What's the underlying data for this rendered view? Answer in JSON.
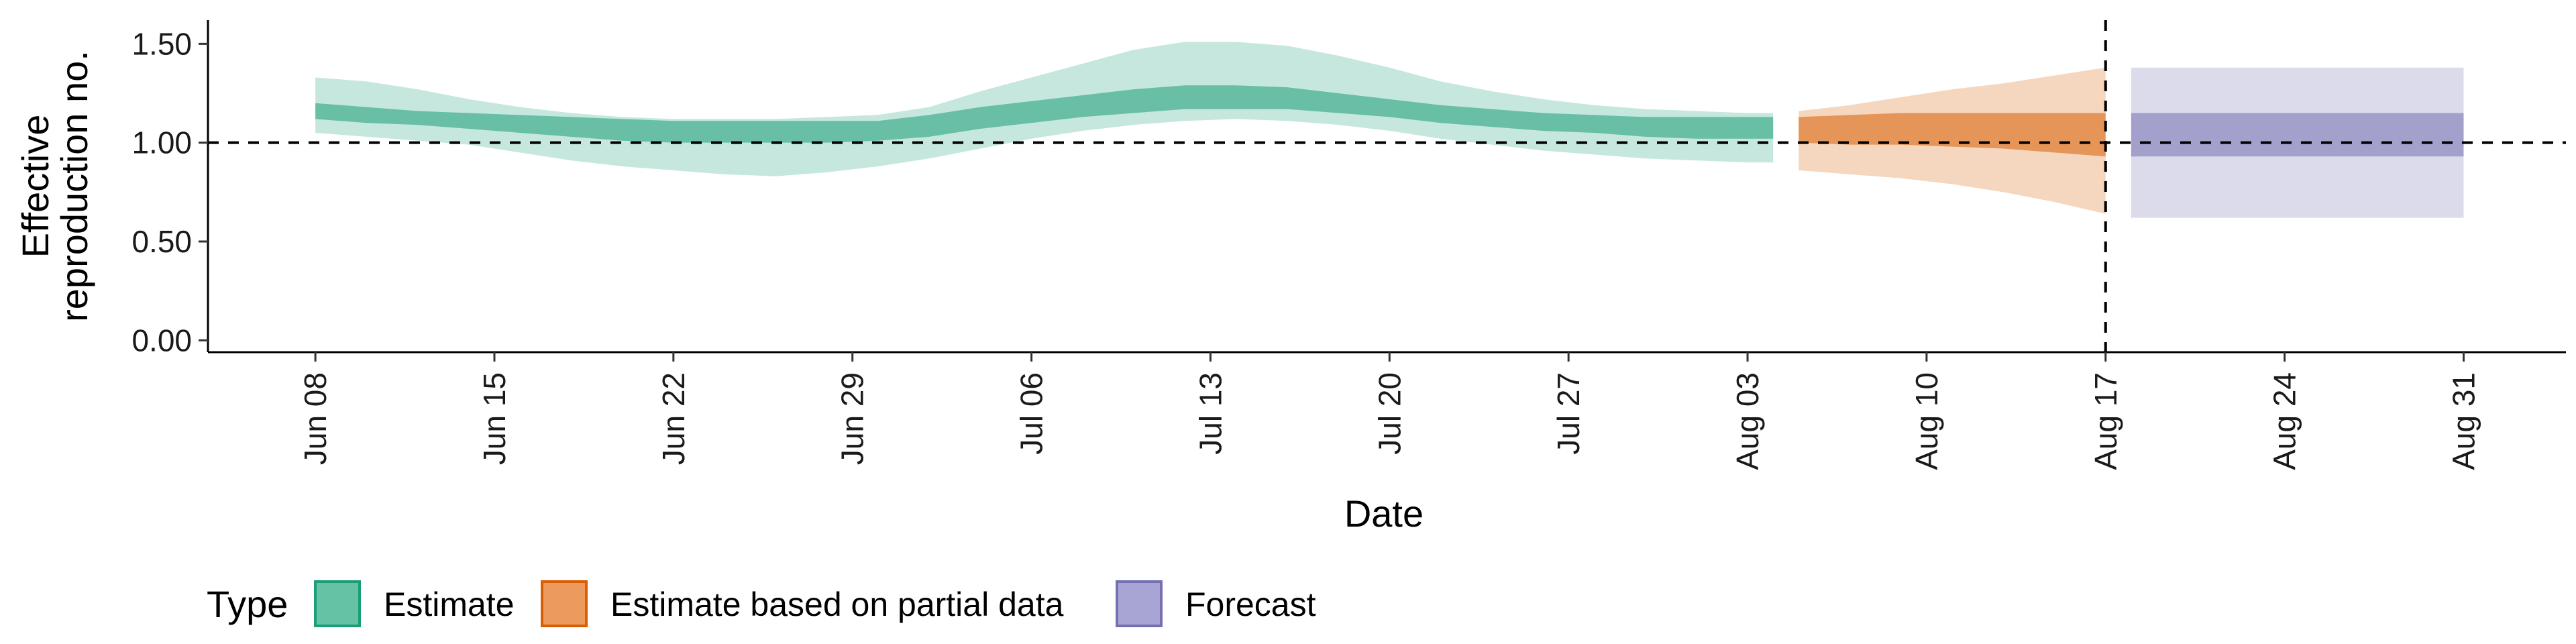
{
  "chart_data": {
    "type": "area",
    "xlabel": "Date",
    "ylabel_lines": [
      "Effective",
      "reproduction no."
    ],
    "x_tick_labels": [
      "Jun 08",
      "Jun 15",
      "Jun 22",
      "Jun 29",
      "Jul 06",
      "Jul 13",
      "Jul 20",
      "Jul 27",
      "Aug 03",
      "Aug 10",
      "Aug 17",
      "Aug 24",
      "Aug 31"
    ],
    "y_ticks": [
      0.0,
      0.5,
      1.0,
      1.5
    ],
    "y_tick_labels": [
      "0.00",
      "0.50",
      "1.00",
      "1.50"
    ],
    "ylim": [
      0,
      1.6
    ],
    "x_range_days": [
      -4.2,
      88
    ],
    "reference_hline": 1.0,
    "reference_vline_date": "Aug 17",
    "legend": {
      "title": "Type",
      "position": "bottom-left",
      "items": [
        {
          "label": "Estimate",
          "fill": "#66c2a5",
          "stroke": "#1b9e77"
        },
        {
          "label": "Estimate based on partial data",
          "fill": "#ec9a5e",
          "stroke": "#d95f02"
        },
        {
          "label": "Forecast",
          "fill": "#a8a5d4",
          "stroke": "#7570b3"
        }
      ]
    },
    "series": [
      {
        "name": "Estimate",
        "color": "#1b9e77",
        "dates": [
          "Jun 08",
          "Jun 10",
          "Jun 12",
          "Jun 14",
          "Jun 16",
          "Jun 18",
          "Jun 20",
          "Jun 22",
          "Jun 24",
          "Jun 26",
          "Jun 28",
          "Jun 30",
          "Jul 02",
          "Jul 04",
          "Jul 06",
          "Jul 08",
          "Jul 10",
          "Jul 12",
          "Jul 14",
          "Jul 16",
          "Jul 18",
          "Jul 20",
          "Jul 22",
          "Jul 24",
          "Jul 26",
          "Jul 28",
          "Jul 30",
          "Aug 01",
          "Aug 03",
          "Aug 04"
        ],
        "outer_lower": [
          1.05,
          1.03,
          1.01,
          0.99,
          0.95,
          0.91,
          0.88,
          0.86,
          0.84,
          0.83,
          0.85,
          0.88,
          0.92,
          0.97,
          1.02,
          1.06,
          1.09,
          1.11,
          1.12,
          1.11,
          1.09,
          1.06,
          1.02,
          0.99,
          0.96,
          0.94,
          0.92,
          0.91,
          0.9,
          0.9
        ],
        "outer_upper": [
          1.33,
          1.31,
          1.27,
          1.22,
          1.18,
          1.15,
          1.13,
          1.12,
          1.12,
          1.12,
          1.13,
          1.14,
          1.18,
          1.26,
          1.33,
          1.4,
          1.47,
          1.51,
          1.51,
          1.49,
          1.44,
          1.38,
          1.31,
          1.26,
          1.22,
          1.19,
          1.17,
          1.16,
          1.15,
          1.15
        ],
        "inner_lower": [
          1.12,
          1.1,
          1.09,
          1.07,
          1.05,
          1.03,
          1.01,
          1.0,
          1.0,
          1.0,
          1.0,
          1.01,
          1.03,
          1.07,
          1.1,
          1.13,
          1.15,
          1.17,
          1.17,
          1.17,
          1.15,
          1.13,
          1.1,
          1.08,
          1.06,
          1.05,
          1.03,
          1.02,
          1.02,
          1.02
        ],
        "inner_upper": [
          1.2,
          1.18,
          1.16,
          1.15,
          1.14,
          1.13,
          1.12,
          1.11,
          1.11,
          1.11,
          1.11,
          1.11,
          1.14,
          1.18,
          1.21,
          1.24,
          1.27,
          1.29,
          1.29,
          1.28,
          1.25,
          1.22,
          1.19,
          1.17,
          1.15,
          1.14,
          1.13,
          1.13,
          1.13,
          1.13
        ]
      },
      {
        "name": "Estimate based on partial data",
        "color": "#d95f02",
        "dates": [
          "Aug 05",
          "Aug 07",
          "Aug 09",
          "Aug 11",
          "Aug 13",
          "Aug 15",
          "Aug 17"
        ],
        "outer_lower": [
          0.86,
          0.84,
          0.82,
          0.79,
          0.75,
          0.7,
          0.64
        ],
        "outer_upper": [
          1.16,
          1.19,
          1.23,
          1.27,
          1.3,
          1.34,
          1.38
        ],
        "inner_lower": [
          1.0,
          0.99,
          0.99,
          0.98,
          0.97,
          0.95,
          0.93
        ],
        "inner_upper": [
          1.13,
          1.14,
          1.15,
          1.15,
          1.15,
          1.15,
          1.15
        ]
      },
      {
        "name": "Forecast",
        "color": "#7570b3",
        "dates": [
          "Aug 18",
          "Aug 31"
        ],
        "outer_lower": [
          0.62,
          0.62
        ],
        "outer_upper": [
          1.38,
          1.38
        ],
        "inner_lower": [
          0.93,
          0.93
        ],
        "inner_upper": [
          1.15,
          1.15
        ]
      }
    ]
  }
}
